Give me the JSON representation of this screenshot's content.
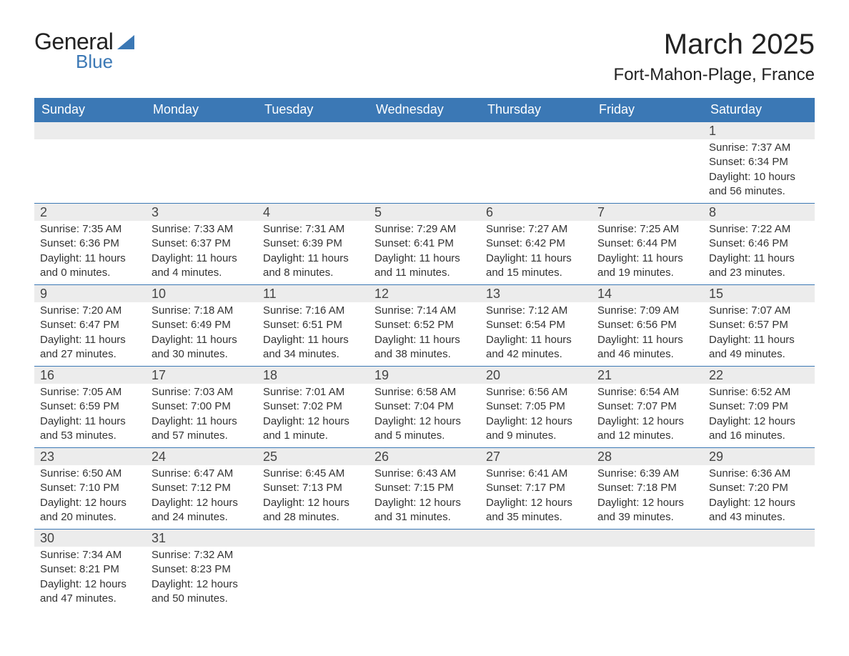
{
  "brand": {
    "name_part1": "General",
    "name_part2": "Blue"
  },
  "title": "March 2025",
  "location": "Fort-Mahon-Plage, France",
  "colors": {
    "header_bg": "#3b78b5",
    "header_text": "#ffffff",
    "daynum_bg": "#ececec",
    "row_border": "#3b78b5",
    "body_text": "#333333",
    "page_bg": "#ffffff"
  },
  "weekdays": [
    "Sunday",
    "Monday",
    "Tuesday",
    "Wednesday",
    "Thursday",
    "Friday",
    "Saturday"
  ],
  "weeks": [
    [
      null,
      null,
      null,
      null,
      null,
      null,
      {
        "n": "1",
        "sunrise": "Sunrise: 7:37 AM",
        "sunset": "Sunset: 6:34 PM",
        "dl1": "Daylight: 10 hours",
        "dl2": "and 56 minutes."
      }
    ],
    [
      {
        "n": "2",
        "sunrise": "Sunrise: 7:35 AM",
        "sunset": "Sunset: 6:36 PM",
        "dl1": "Daylight: 11 hours",
        "dl2": "and 0 minutes."
      },
      {
        "n": "3",
        "sunrise": "Sunrise: 7:33 AM",
        "sunset": "Sunset: 6:37 PM",
        "dl1": "Daylight: 11 hours",
        "dl2": "and 4 minutes."
      },
      {
        "n": "4",
        "sunrise": "Sunrise: 7:31 AM",
        "sunset": "Sunset: 6:39 PM",
        "dl1": "Daylight: 11 hours",
        "dl2": "and 8 minutes."
      },
      {
        "n": "5",
        "sunrise": "Sunrise: 7:29 AM",
        "sunset": "Sunset: 6:41 PM",
        "dl1": "Daylight: 11 hours",
        "dl2": "and 11 minutes."
      },
      {
        "n": "6",
        "sunrise": "Sunrise: 7:27 AM",
        "sunset": "Sunset: 6:42 PM",
        "dl1": "Daylight: 11 hours",
        "dl2": "and 15 minutes."
      },
      {
        "n": "7",
        "sunrise": "Sunrise: 7:25 AM",
        "sunset": "Sunset: 6:44 PM",
        "dl1": "Daylight: 11 hours",
        "dl2": "and 19 minutes."
      },
      {
        "n": "8",
        "sunrise": "Sunrise: 7:22 AM",
        "sunset": "Sunset: 6:46 PM",
        "dl1": "Daylight: 11 hours",
        "dl2": "and 23 minutes."
      }
    ],
    [
      {
        "n": "9",
        "sunrise": "Sunrise: 7:20 AM",
        "sunset": "Sunset: 6:47 PM",
        "dl1": "Daylight: 11 hours",
        "dl2": "and 27 minutes."
      },
      {
        "n": "10",
        "sunrise": "Sunrise: 7:18 AM",
        "sunset": "Sunset: 6:49 PM",
        "dl1": "Daylight: 11 hours",
        "dl2": "and 30 minutes."
      },
      {
        "n": "11",
        "sunrise": "Sunrise: 7:16 AM",
        "sunset": "Sunset: 6:51 PM",
        "dl1": "Daylight: 11 hours",
        "dl2": "and 34 minutes."
      },
      {
        "n": "12",
        "sunrise": "Sunrise: 7:14 AM",
        "sunset": "Sunset: 6:52 PM",
        "dl1": "Daylight: 11 hours",
        "dl2": "and 38 minutes."
      },
      {
        "n": "13",
        "sunrise": "Sunrise: 7:12 AM",
        "sunset": "Sunset: 6:54 PM",
        "dl1": "Daylight: 11 hours",
        "dl2": "and 42 minutes."
      },
      {
        "n": "14",
        "sunrise": "Sunrise: 7:09 AM",
        "sunset": "Sunset: 6:56 PM",
        "dl1": "Daylight: 11 hours",
        "dl2": "and 46 minutes."
      },
      {
        "n": "15",
        "sunrise": "Sunrise: 7:07 AM",
        "sunset": "Sunset: 6:57 PM",
        "dl1": "Daylight: 11 hours",
        "dl2": "and 49 minutes."
      }
    ],
    [
      {
        "n": "16",
        "sunrise": "Sunrise: 7:05 AM",
        "sunset": "Sunset: 6:59 PM",
        "dl1": "Daylight: 11 hours",
        "dl2": "and 53 minutes."
      },
      {
        "n": "17",
        "sunrise": "Sunrise: 7:03 AM",
        "sunset": "Sunset: 7:00 PM",
        "dl1": "Daylight: 11 hours",
        "dl2": "and 57 minutes."
      },
      {
        "n": "18",
        "sunrise": "Sunrise: 7:01 AM",
        "sunset": "Sunset: 7:02 PM",
        "dl1": "Daylight: 12 hours",
        "dl2": "and 1 minute."
      },
      {
        "n": "19",
        "sunrise": "Sunrise: 6:58 AM",
        "sunset": "Sunset: 7:04 PM",
        "dl1": "Daylight: 12 hours",
        "dl2": "and 5 minutes."
      },
      {
        "n": "20",
        "sunrise": "Sunrise: 6:56 AM",
        "sunset": "Sunset: 7:05 PM",
        "dl1": "Daylight: 12 hours",
        "dl2": "and 9 minutes."
      },
      {
        "n": "21",
        "sunrise": "Sunrise: 6:54 AM",
        "sunset": "Sunset: 7:07 PM",
        "dl1": "Daylight: 12 hours",
        "dl2": "and 12 minutes."
      },
      {
        "n": "22",
        "sunrise": "Sunrise: 6:52 AM",
        "sunset": "Sunset: 7:09 PM",
        "dl1": "Daylight: 12 hours",
        "dl2": "and 16 minutes."
      }
    ],
    [
      {
        "n": "23",
        "sunrise": "Sunrise: 6:50 AM",
        "sunset": "Sunset: 7:10 PM",
        "dl1": "Daylight: 12 hours",
        "dl2": "and 20 minutes."
      },
      {
        "n": "24",
        "sunrise": "Sunrise: 6:47 AM",
        "sunset": "Sunset: 7:12 PM",
        "dl1": "Daylight: 12 hours",
        "dl2": "and 24 minutes."
      },
      {
        "n": "25",
        "sunrise": "Sunrise: 6:45 AM",
        "sunset": "Sunset: 7:13 PM",
        "dl1": "Daylight: 12 hours",
        "dl2": "and 28 minutes."
      },
      {
        "n": "26",
        "sunrise": "Sunrise: 6:43 AM",
        "sunset": "Sunset: 7:15 PM",
        "dl1": "Daylight: 12 hours",
        "dl2": "and 31 minutes."
      },
      {
        "n": "27",
        "sunrise": "Sunrise: 6:41 AM",
        "sunset": "Sunset: 7:17 PM",
        "dl1": "Daylight: 12 hours",
        "dl2": "and 35 minutes."
      },
      {
        "n": "28",
        "sunrise": "Sunrise: 6:39 AM",
        "sunset": "Sunset: 7:18 PM",
        "dl1": "Daylight: 12 hours",
        "dl2": "and 39 minutes."
      },
      {
        "n": "29",
        "sunrise": "Sunrise: 6:36 AM",
        "sunset": "Sunset: 7:20 PM",
        "dl1": "Daylight: 12 hours",
        "dl2": "and 43 minutes."
      }
    ],
    [
      {
        "n": "30",
        "sunrise": "Sunrise: 7:34 AM",
        "sunset": "Sunset: 8:21 PM",
        "dl1": "Daylight: 12 hours",
        "dl2": "and 47 minutes."
      },
      {
        "n": "31",
        "sunrise": "Sunrise: 7:32 AM",
        "sunset": "Sunset: 8:23 PM",
        "dl1": "Daylight: 12 hours",
        "dl2": "and 50 minutes."
      },
      null,
      null,
      null,
      null,
      null
    ]
  ]
}
